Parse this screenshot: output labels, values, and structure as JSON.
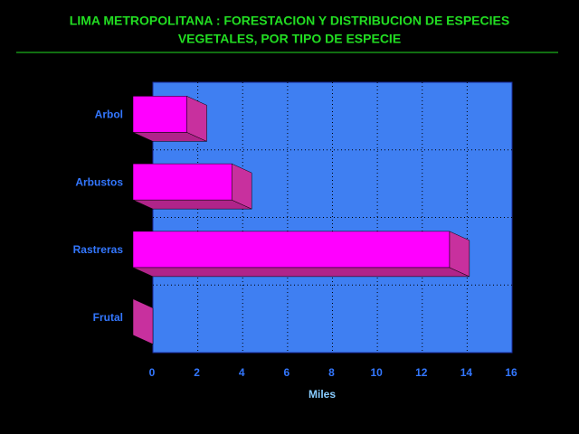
{
  "chart_data": {
    "type": "bar3d",
    "orientation": "horizontal",
    "title": [
      "LIMA METROPOLITANA : FORESTACION Y DISTRIBUCION DE ESPECIES",
      "VEGETALES, POR TIPO DE ESPECIE"
    ],
    "categories": [
      "Arbol",
      "Arbustos",
      "Rastreras",
      "Frutal"
    ],
    "values": [
      2.4,
      4.4,
      14.1,
      0
    ],
    "color": "#ff00ff",
    "xlabel": "Miles",
    "xlim": [
      0,
      16
    ],
    "xticks": [
      0,
      2,
      4,
      6,
      8,
      10,
      12,
      14,
      16
    ],
    "grid": true
  }
}
